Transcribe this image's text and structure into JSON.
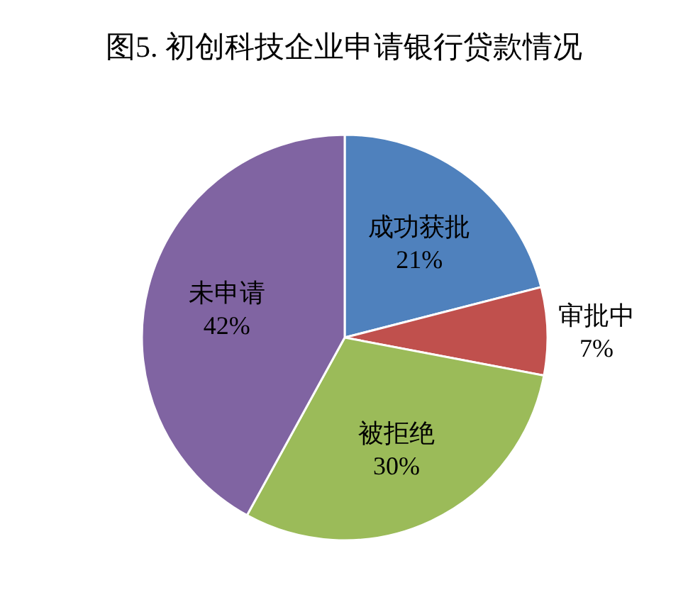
{
  "chart_data": {
    "type": "pie",
    "title": "图5. 初创科技企业申请银行贷款情况",
    "categories": [
      "成功获批",
      "审批中",
      "被拒绝",
      "未申请"
    ],
    "values": [
      21,
      7,
      30,
      42
    ],
    "colors": [
      "#4f81bd",
      "#c0504d",
      "#9bbb59",
      "#8064a2"
    ],
    "value_labels": [
      "21%",
      "7%",
      "30%",
      "42%"
    ]
  }
}
